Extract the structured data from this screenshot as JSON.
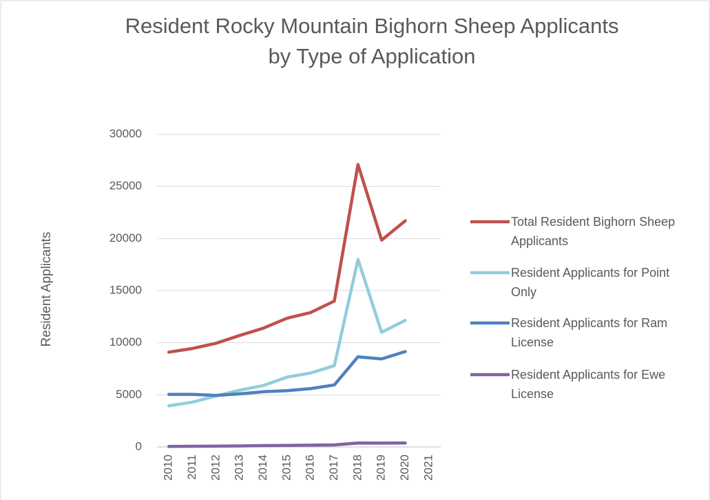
{
  "chart_data": {
    "type": "line",
    "title": "Resident Rocky Mountain Bighorn Sheep Applicants by Type of Application",
    "y_label": "Resident Applicants",
    "categories": [
      "2010",
      "2011",
      "2012",
      "2013",
      "2014",
      "2015",
      "2016",
      "2017",
      "2018",
      "2019",
      "2020",
      "2021"
    ],
    "series": [
      {
        "name": "Total Resident Bighorn Sheep Applicants",
        "color": "#c0504d",
        "values": [
          9100,
          9450,
          9950,
          10700,
          11400,
          12350,
          12900,
          14000,
          27100,
          19850,
          21700,
          null
        ]
      },
      {
        "name": "Resident Applicants for Point Only",
        "color": "#92cddc",
        "values": [
          3950,
          4300,
          4900,
          5450,
          5900,
          6700,
          7100,
          7800,
          18000,
          11000,
          12150,
          null
        ]
      },
      {
        "name": "Resident Applicants for Ram License",
        "color": "#4f81bd",
        "values": [
          5050,
          5050,
          4950,
          5100,
          5300,
          5400,
          5600,
          5950,
          8650,
          8450,
          9150,
          null
        ]
      },
      {
        "name": "Resident Applicants for Ewe License",
        "color": "#8064a2",
        "values": [
          50,
          70,
          80,
          100,
          130,
          150,
          170,
          200,
          380,
          370,
          380,
          null
        ]
      }
    ],
    "ylim": [
      0,
      30000
    ],
    "yticks": [
      0,
      5000,
      10000,
      15000,
      20000,
      25000,
      30000
    ],
    "grid": true,
    "legend": "right"
  }
}
